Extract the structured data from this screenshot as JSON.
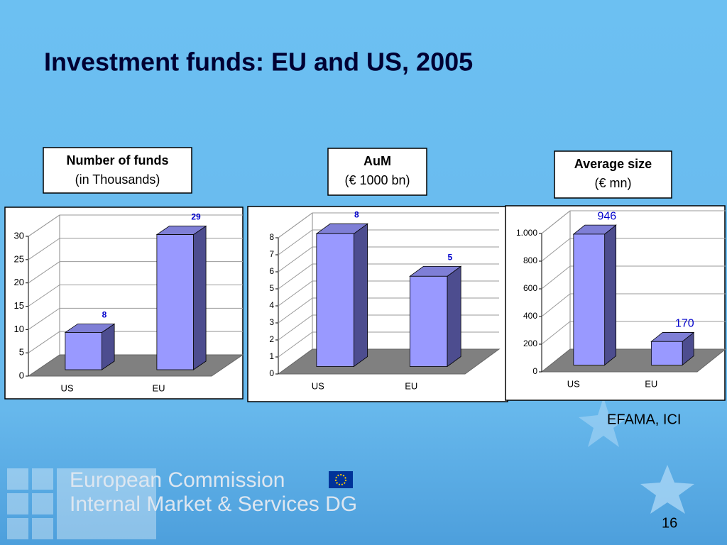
{
  "title": "Investment funds: EU and US, 2005",
  "chart_data": [
    {
      "type": "bar",
      "title": "Number of funds",
      "subtitle": "(in Thousands)",
      "categories": [
        "US",
        "EU"
      ],
      "values": [
        8,
        29
      ],
      "color": "#9999ff",
      "ylim": [
        0,
        30
      ],
      "yticks": [
        0,
        5,
        10,
        15,
        20,
        25,
        30
      ],
      "grid": true
    },
    {
      "type": "bar",
      "title": "AuM",
      "subtitle": "(€ 1000 bn)",
      "categories": [
        "US",
        "EU"
      ],
      "values": [
        7.8,
        5.3
      ],
      "value_labels": [
        "8",
        "5"
      ],
      "color": "#9999ff",
      "ylim": [
        0,
        8
      ],
      "yticks": [
        0,
        1,
        2,
        3,
        4,
        5,
        6,
        7,
        8
      ],
      "grid": true
    },
    {
      "type": "bar",
      "title": "Average size",
      "subtitle": "(€ mn)",
      "categories": [
        "US",
        "EU"
      ],
      "values": [
        946,
        170
      ],
      "color": "#9999ff",
      "ylim": [
        0,
        1000
      ],
      "yticks": [
        0,
        200,
        400,
        600,
        800,
        {
          "value": 1000,
          "label": "1.000"
        }
      ],
      "grid": true
    }
  ],
  "source": "EFAMA, ICI",
  "footer": {
    "org": "European Commission",
    "dg": "Internal Market & Services DG"
  },
  "page_number": "16"
}
